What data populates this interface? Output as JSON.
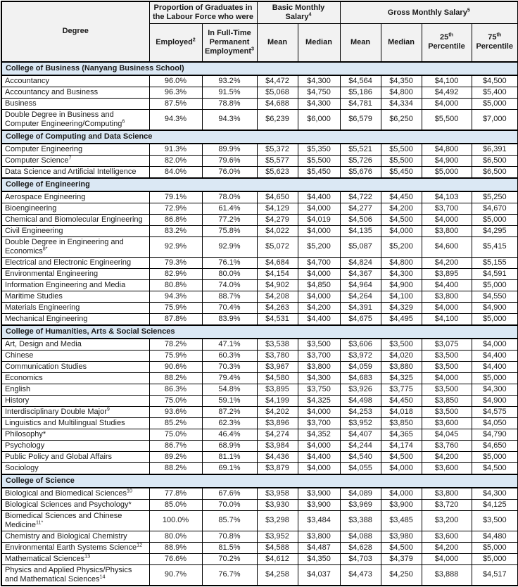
{
  "colors": {
    "section_band": "#dbe8f4",
    "header_bg": "#f2f2f2",
    "border": "#000000"
  },
  "table": {
    "header": {
      "degree_label": "Degree",
      "labour_group": "Proportion of Graduates in the Labour Force who were",
      "employed": {
        "text": "Employed",
        "sup": "2"
      },
      "fulltime": {
        "text": "In Full-Time Permanent Employment",
        "sup": "3"
      },
      "basic_group": {
        "text": "Basic Monthly Salary",
        "sup": "4"
      },
      "gross_group": {
        "text": "Gross Monthly Salary",
        "sup": "5"
      },
      "basic_mean": "Mean",
      "basic_median": "Median",
      "gross_mean": "Mean",
      "gross_median": "Median",
      "p25": {
        "num": "25",
        "ord": "th",
        "label": "Percentile"
      },
      "p75": {
        "num": "75",
        "ord": "th",
        "label": "Percentile"
      }
    },
    "sections": [
      {
        "name": "College of Business (Nanyang Business School)",
        "rows": [
          {
            "degree": "Accountancy",
            "sup": "",
            "values": [
              "96.0%",
              "93.2%",
              "$4,472",
              "$4,300",
              "$4,564",
              "$4,350",
              "$4,100",
              "$4,500"
            ]
          },
          {
            "degree": "Accountancy and Business",
            "sup": "",
            "values": [
              "96.3%",
              "91.5%",
              "$5,068",
              "$4,750",
              "$5,186",
              "$4,800",
              "$4,492",
              "$5,400"
            ]
          },
          {
            "degree": "Business",
            "sup": "",
            "values": [
              "87.5%",
              "78.8%",
              "$4,688",
              "$4,300",
              "$4,781",
              "$4,334",
              "$4,000",
              "$5,000"
            ]
          },
          {
            "degree": "Double Degree in Business and Computer Engineering/Computing",
            "sup": "6",
            "values": [
              "94.3%",
              "94.3%",
              "$6,239",
              "$6,000",
              "$6,579",
              "$6,250",
              "$5,500",
              "$7,000"
            ]
          }
        ]
      },
      {
        "name": "College of Computing and Data Science",
        "rows": [
          {
            "degree": "Computer Engineering",
            "sup": "",
            "values": [
              "91.3%",
              "89.9%",
              "$5,372",
              "$5,350",
              "$5,521",
              "$5,500",
              "$4,800",
              "$6,391"
            ]
          },
          {
            "degree": "Computer Science",
            "sup": "7",
            "values": [
              "82.0%",
              "79.6%",
              "$5,577",
              "$5,500",
              "$5,726",
              "$5,500",
              "$4,900",
              "$6,500"
            ]
          },
          {
            "degree": "Data Science and Artificial Intelligence",
            "sup": "",
            "values": [
              "84.0%",
              "76.0%",
              "$5,623",
              "$5,450",
              "$5,676",
              "$5,450",
              "$5,000",
              "$6,500"
            ]
          }
        ]
      },
      {
        "name": "College of Engineering",
        "rows": [
          {
            "degree": "Aerospace Engineering",
            "sup": "",
            "values": [
              "79.1%",
              "78.0%",
              "$4,650",
              "$4,400",
              "$4,722",
              "$4,450",
              "$4,103",
              "$5,250"
            ]
          },
          {
            "degree": "Bioengineering",
            "sup": "",
            "values": [
              "72.9%",
              "61.4%",
              "$4,129",
              "$4,000",
              "$4,277",
              "$4,200",
              "$3,700",
              "$4,670"
            ]
          },
          {
            "degree": "Chemical and Biomolecular Engineering",
            "sup": "",
            "values": [
              "86.8%",
              "77.2%",
              "$4,279",
              "$4,019",
              "$4,506",
              "$4,500",
              "$4,000",
              "$5,000"
            ]
          },
          {
            "degree": "Civil Engineering",
            "sup": "",
            "values": [
              "83.2%",
              "75.8%",
              "$4,022",
              "$4,000",
              "$4,135",
              "$4,000",
              "$3,800",
              "$4,295"
            ]
          },
          {
            "degree": "Double Degree in Engineering and Economics",
            "sup": "8*",
            "values": [
              "92.9%",
              "92.9%",
              "$5,072",
              "$5,200",
              "$5,087",
              "$5,200",
              "$4,600",
              "$5,415"
            ]
          },
          {
            "degree": "Electrical and Electronic Engineering",
            "sup": "",
            "values": [
              "79.3%",
              "76.1%",
              "$4,684",
              "$4,700",
              "$4,824",
              "$4,800",
              "$4,200",
              "$5,155"
            ]
          },
          {
            "degree": "Environmental Engineering",
            "sup": "",
            "values": [
              "82.9%",
              "80.0%",
              "$4,154",
              "$4,000",
              "$4,367",
              "$4,300",
              "$3,895",
              "$4,591"
            ]
          },
          {
            "degree": "Information Engineering and Media",
            "sup": "",
            "values": [
              "80.8%",
              "74.0%",
              "$4,902",
              "$4,850",
              "$4,964",
              "$4,900",
              "$4,400",
              "$5,000"
            ]
          },
          {
            "degree": "Maritime Studies",
            "sup": "",
            "values": [
              "94.3%",
              "88.7%",
              "$4,208",
              "$4,000",
              "$4,264",
              "$4,100",
              "$3,800",
              "$4,550"
            ]
          },
          {
            "degree": "Materials Engineering",
            "sup": "",
            "values": [
              "75.9%",
              "70.4%",
              "$4,263",
              "$4,200",
              "$4,391",
              "$4,329",
              "$4,000",
              "$4,900"
            ]
          },
          {
            "degree": "Mechanical Engineering",
            "sup": "",
            "values": [
              "87.8%",
              "83.9%",
              "$4,531",
              "$4,400",
              "$4,675",
              "$4,495",
              "$4,100",
              "$5,000"
            ]
          }
        ]
      },
      {
        "name": "College of Humanities, Arts & Social Sciences",
        "rows": [
          {
            "degree": "Art, Design and Media",
            "sup": "",
            "values": [
              "78.2%",
              "47.1%",
              "$3,538",
              "$3,500",
              "$3,606",
              "$3,500",
              "$3,075",
              "$4,000"
            ]
          },
          {
            "degree": "Chinese",
            "sup": "",
            "values": [
              "75.9%",
              "60.3%",
              "$3,780",
              "$3,700",
              "$3,972",
              "$4,020",
              "$3,500",
              "$4,400"
            ]
          },
          {
            "degree": "Communication Studies",
            "sup": "",
            "values": [
              "90.6%",
              "70.3%",
              "$3,967",
              "$3,800",
              "$4,059",
              "$3,880",
              "$3,500",
              "$4,400"
            ]
          },
          {
            "degree": "Economics",
            "sup": "",
            "values": [
              "88.2%",
              "79.4%",
              "$4,580",
              "$4,300",
              "$4,683",
              "$4,325",
              "$4,000",
              "$5,000"
            ]
          },
          {
            "degree": "English",
            "sup": "",
            "values": [
              "86.3%",
              "54.8%",
              "$3,895",
              "$3,750",
              "$3,926",
              "$3,775",
              "$3,500",
              "$4,300"
            ]
          },
          {
            "degree": "History",
            "sup": "",
            "values": [
              "75.0%",
              "59.1%",
              "$4,199",
              "$4,325",
              "$4,498",
              "$4,450",
              "$3,850",
              "$4,900"
            ]
          },
          {
            "degree": "Interdisciplinary Double Major",
            "sup": "9",
            "values": [
              "93.6%",
              "87.2%",
              "$4,202",
              "$4,000",
              "$4,253",
              "$4,018",
              "$3,500",
              "$4,575"
            ]
          },
          {
            "degree": "Linguistics and Multilingual Studies",
            "sup": "",
            "values": [
              "85.2%",
              "62.3%",
              "$3,896",
              "$3,700",
              "$3,952",
              "$3,850",
              "$3,600",
              "$4,050"
            ]
          },
          {
            "degree": "Philosophy*",
            "sup": "",
            "values": [
              "75.0%",
              "46.4%",
              "$4,274",
              "$4,352",
              "$4,407",
              "$4,365",
              "$4,045",
              "$4,790"
            ]
          },
          {
            "degree": "Psychology",
            "sup": "",
            "values": [
              "86.7%",
              "68.9%",
              "$3,984",
              "$4,000",
              "$4,244",
              "$4,174",
              "$3,760",
              "$4,650"
            ]
          },
          {
            "degree": "Public Policy and Global Affairs",
            "sup": "",
            "values": [
              "89.2%",
              "81.1%",
              "$4,436",
              "$4,400",
              "$4,540",
              "$4,500",
              "$4,200",
              "$5,000"
            ]
          },
          {
            "degree": "Sociology",
            "sup": "",
            "values": [
              "88.2%",
              "69.1%",
              "$3,879",
              "$4,000",
              "$4,055",
              "$4,000",
              "$3,600",
              "$4,500"
            ]
          }
        ]
      },
      {
        "name": "College of Science",
        "rows": [
          {
            "degree": "Biological and Biomedical Sciences",
            "sup": "10",
            "values": [
              "77.8%",
              "67.6%",
              "$3,958",
              "$3,900",
              "$4,089",
              "$4,000",
              "$3,800",
              "$4,300"
            ]
          },
          {
            "degree": "Biological Sciences and Psychology*",
            "sup": "",
            "values": [
              "85.0%",
              "70.0%",
              "$3,930",
              "$3,900",
              "$3,969",
              "$3,900",
              "$3,720",
              "$4,125"
            ]
          },
          {
            "degree": "Biomedical Sciences and Chinese Medicine",
            "sup": "11*",
            "values": [
              "100.0%",
              "85.7%",
              "$3,298",
              "$3,484",
              "$3,388",
              "$3,485",
              "$3,200",
              "$3,500"
            ]
          },
          {
            "degree": "Chemistry and Biological Chemistry",
            "sup": "",
            "values": [
              "80.0%",
              "70.8%",
              "$3,952",
              "$3,800",
              "$4,088",
              "$3,980",
              "$3,600",
              "$4,480"
            ]
          },
          {
            "degree": "Environmental Earth Systems Science",
            "sup": "12",
            "values": [
              "88.9%",
              "81.5%",
              "$4,588",
              "$4,487",
              "$4,628",
              "$4,500",
              "$4,200",
              "$5,000"
            ]
          },
          {
            "degree": "Mathematical Sciences",
            "sup": "13",
            "values": [
              "76.6%",
              "70.2%",
              "$4,612",
              "$4,350",
              "$4,703",
              "$4,379",
              "$4,000",
              "$5,000"
            ]
          },
          {
            "degree": "Physics and Applied Physics/Physics and Mathematical Sciences",
            "sup": "14",
            "values": [
              "90.7%",
              "76.7%",
              "$4,258",
              "$4,037",
              "$4,473",
              "$4,250",
              "$3,888",
              "$4,517"
            ]
          }
        ]
      }
    ]
  }
}
